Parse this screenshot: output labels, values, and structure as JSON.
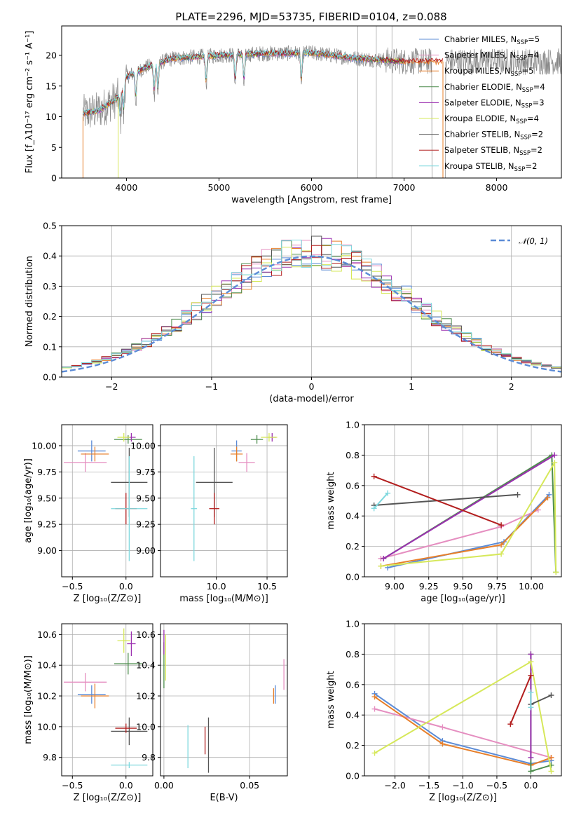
{
  "figure_title": "PLATE=2296, MJD=53735, FIBERID=0104, z=0.088",
  "colors": {
    "chabrier_miles": "#5b8bd6",
    "salpeter_miles": "#e58ec0",
    "kroupa_miles": "#e77f2a",
    "chabrier_elodie": "#4e8d4e",
    "salpeter_elodie": "#9b30b0",
    "kroupa_elodie": "#d6e85a",
    "chabrier_stelib": "#555555",
    "salpeter_stelib": "#b21d1d",
    "kroupa_stelib": "#7fd8de",
    "gaussian": "#5b8bd6",
    "grid": "#b0b0b0"
  },
  "chart_data": [
    {
      "id": "spectrum",
      "type": "line",
      "xlabel": "wavelength [Angstrom, rest frame]",
      "ylabel": "Flux [f_λ10⁻¹⁷ erg cm⁻² s⁻¹ A⁻¹]",
      "xlim": [
        3300,
        8700
      ],
      "ylim": [
        0,
        24.8
      ],
      "xticks": [
        4000,
        5000,
        6000,
        7000,
        8000
      ],
      "yticks": [
        0,
        5,
        10,
        15,
        20
      ],
      "grid": false,
      "legend_position": "right",
      "legend": [
        {
          "label": "Chabrier MILES, N",
          "sub": "SSP",
          "tail": "=5",
          "color_key": "chabrier_miles"
        },
        {
          "label": "Salpeter MILES, N",
          "sub": "SSP",
          "tail": "=4",
          "color_key": "salpeter_miles"
        },
        {
          "label": "Kroupa MILES, N",
          "sub": "SSP",
          "tail": "=5",
          "color_key": "kroupa_miles"
        },
        {
          "label": "Chabrier ELODIE, N",
          "sub": "SSP",
          "tail": "=4",
          "color_key": "chabrier_elodie"
        },
        {
          "label": "Salpeter ELODIE, N",
          "sub": "SSP",
          "tail": "=3",
          "color_key": "salpeter_elodie"
        },
        {
          "label": "Kroupa ELODIE, N",
          "sub": "SSP",
          "tail": "=4",
          "color_key": "kroupa_elodie"
        },
        {
          "label": "Chabrier STELIB, N",
          "sub": "SSP",
          "tail": "=2",
          "color_key": "chabrier_stelib"
        },
        {
          "label": "Salpeter STELIB, N",
          "sub": "SSP",
          "tail": "=2",
          "color_key": "salpeter_stelib"
        },
        {
          "label": "Kroupa STELIB, N",
          "sub": "SSP",
          "tail": "=2",
          "color_key": "kroupa_stelib"
        }
      ],
      "continuum": [
        [
          3530,
          10.5
        ],
        [
          3700,
          11
        ],
        [
          3900,
          13
        ],
        [
          4000,
          16.5
        ],
        [
          4200,
          18
        ],
        [
          4500,
          19.5
        ],
        [
          5000,
          20
        ],
        [
          5500,
          20.3
        ],
        [
          6000,
          20.4
        ],
        [
          6500,
          19.5
        ],
        [
          7000,
          19
        ],
        [
          7200,
          19
        ]
      ],
      "model_end": {
        "kroupa_stelib": 6750,
        "salpeter_stelib": 7420,
        "kroupa_elodie": 7000,
        "chabrier_elodie": 7000,
        "salpeter_elodie": 7000,
        "chabrier_miles": 7000,
        "salpeter_miles": 7000,
        "kroupa_miles": 7420,
        "chabrier_stelib": 7000
      },
      "data_end": 8700,
      "absorption_lines": [
        3934,
        3969,
        4102,
        4300,
        4340,
        4861,
        5175,
        5270,
        5890
      ],
      "sky_spikes": [
        6500,
        6700,
        6870
      ]
    },
    {
      "id": "residuals",
      "type": "step",
      "xlabel": "(data-model)/error",
      "ylabel": "Normed distribution",
      "xlim": [
        -2.5,
        2.5
      ],
      "ylim": [
        0,
        0.5
      ],
      "xticks": [
        -2,
        -1,
        0,
        1,
        2
      ],
      "yticks": [
        0.0,
        0.1,
        0.2,
        0.3,
        0.4,
        0.5
      ],
      "grid": true,
      "legend": [
        {
          "label": "𝒩(0, 1)",
          "color_key": "gaussian"
        }
      ],
      "legend_position": "top-right",
      "bin_width": 0.1
    },
    {
      "id": "age_vs_Z",
      "type": "errorbar",
      "xlabel": "Z [log₁₀(Z/Z⊙)]",
      "ylabel": "age  [log₁₀(age/yr)]",
      "xlim": [
        -0.6,
        0.25
      ],
      "ylim": [
        8.75,
        10.2
      ],
      "xticks": [
        -0.5,
        0.0
      ],
      "yticks": [
        9.0,
        9.25,
        9.5,
        9.75,
        10.0
      ],
      "grid": true,
      "points": [
        {
          "key": "chabrier_miles",
          "x": -0.32,
          "xerr": 0.13,
          "y": 9.95,
          "yerr": 0.1
        },
        {
          "key": "salpeter_miles",
          "x": -0.38,
          "xerr": 0.2,
          "y": 9.84,
          "yerr": 0.09
        },
        {
          "key": "kroupa_miles",
          "x": -0.29,
          "xerr": 0.13,
          "y": 9.92,
          "yerr": 0.07
        },
        {
          "key": "chabrier_elodie",
          "x": 0.02,
          "xerr": 0.13,
          "y": 10.06,
          "yerr": 0.04
        },
        {
          "key": "salpeter_elodie",
          "x": 0.05,
          "xerr": 0.04,
          "y": 10.08,
          "yerr": 0.04
        },
        {
          "key": "kroupa_elodie",
          "x": -0.02,
          "xerr": 0.06,
          "y": 10.08,
          "yerr": 0.04
        },
        {
          "key": "chabrier_stelib",
          "x": 0.03,
          "xerr": 0.17,
          "y": 9.65,
          "yerr": 0.33
        },
        {
          "key": "salpeter_stelib",
          "x": 0.0,
          "xerr": 0.1,
          "y": 9.4,
          "yerr": 0.15
        },
        {
          "key": "kroupa_stelib",
          "x": 0.03,
          "xerr": 0.17,
          "y": 9.4,
          "yerr": 0.5
        }
      ]
    },
    {
      "id": "age_vs_mass",
      "type": "errorbar",
      "xlabel": "mass [log₁₀(M/M⊙)]",
      "ylabel": "",
      "xlim": [
        9.45,
        10.7
      ],
      "ylim": [
        8.75,
        10.2
      ],
      "xticks": [
        10.0,
        10.5
      ],
      "yticks": [
        9.0,
        9.25,
        9.5,
        9.75,
        10.0
      ],
      "grid": true,
      "points": [
        {
          "key": "chabrier_miles",
          "x": 10.2,
          "xerr": 0.05,
          "y": 9.95,
          "yerr": 0.1
        },
        {
          "key": "salpeter_miles",
          "x": 10.3,
          "xerr": 0.08,
          "y": 9.84,
          "yerr": 0.09
        },
        {
          "key": "kroupa_miles",
          "x": 10.2,
          "xerr": 0.06,
          "y": 9.92,
          "yerr": 0.07
        },
        {
          "key": "chabrier_elodie",
          "x": 10.4,
          "xerr": 0.06,
          "y": 10.06,
          "yerr": 0.04
        },
        {
          "key": "salpeter_elodie",
          "x": 10.55,
          "xerr": 0.04,
          "y": 10.08,
          "yerr": 0.04
        },
        {
          "key": "kroupa_elodie",
          "x": 10.52,
          "xerr": 0.08,
          "y": 10.08,
          "yerr": 0.04
        },
        {
          "key": "chabrier_stelib",
          "x": 9.98,
          "xerr": 0.18,
          "y": 9.65,
          "yerr": 0.33
        },
        {
          "key": "salpeter_stelib",
          "x": 9.98,
          "xerr": 0.05,
          "y": 9.4,
          "yerr": 0.15
        },
        {
          "key": "kroupa_stelib",
          "x": 9.78,
          "xerr": 0.03,
          "y": 9.4,
          "yerr": 0.5
        }
      ]
    },
    {
      "id": "weight_vs_age",
      "type": "line",
      "xlabel": "age  [log₁₀(age/yr)]",
      "ylabel": "mass weight",
      "xlim": [
        8.78,
        10.22
      ],
      "ylim": [
        0.0,
        1.0
      ],
      "xticks": [
        9.0,
        9.25,
        9.5,
        9.75,
        10.0
      ],
      "yticks": [
        0.0,
        0.2,
        0.4,
        0.6,
        0.8,
        1.0
      ],
      "grid": true,
      "series": [
        {
          "key": "chabrier_miles",
          "x": [
            8.95,
            9.8,
            10.13
          ],
          "y": [
            0.06,
            0.23,
            0.54
          ]
        },
        {
          "key": "salpeter_miles",
          "x": [
            8.9,
            9.78,
            10.05
          ],
          "y": [
            0.12,
            0.33,
            0.44
          ]
        },
        {
          "key": "kroupa_miles",
          "x": [
            8.9,
            9.78,
            10.12
          ],
          "y": [
            0.07,
            0.21,
            0.52
          ]
        },
        {
          "key": "chabrier_elodie",
          "x": [
            8.92,
            10.15,
            10.18
          ],
          "y": [
            0.12,
            0.8,
            0.03
          ]
        },
        {
          "key": "salpeter_elodie",
          "x": [
            8.92,
            10.17
          ],
          "y": [
            0.12,
            0.8
          ]
        },
        {
          "key": "kroupa_elodie",
          "x": [
            8.9,
            9.78,
            10.17,
            10.18
          ],
          "y": [
            0.07,
            0.15,
            0.75,
            0.03
          ]
        },
        {
          "key": "chabrier_stelib",
          "x": [
            8.85,
            9.9
          ],
          "y": [
            0.47,
            0.54
          ]
        },
        {
          "key": "salpeter_stelib",
          "x": [
            8.85,
            9.78
          ],
          "y": [
            0.66,
            0.34
          ]
        },
        {
          "key": "kroupa_stelib",
          "x": [
            8.85,
            8.95
          ],
          "y": [
            0.45,
            0.55
          ]
        }
      ]
    },
    {
      "id": "mass_vs_Z",
      "type": "errorbar",
      "xlabel": "Z [log₁₀(Z/Z⊙)]",
      "ylabel": "mass [log₁₀(M/M⊙)]",
      "xlim": [
        -0.6,
        0.25
      ],
      "ylim": [
        9.68,
        10.67
      ],
      "xticks": [
        -0.5,
        0.0
      ],
      "yticks": [
        9.8,
        10.0,
        10.2,
        10.4,
        10.6
      ],
      "grid": true,
      "points": [
        {
          "key": "chabrier_miles",
          "x": -0.32,
          "xerr": 0.13,
          "y": 10.21,
          "yerr": 0.06
        },
        {
          "key": "salpeter_miles",
          "x": -0.38,
          "xerr": 0.2,
          "y": 10.29,
          "yerr": 0.06
        },
        {
          "key": "kroupa_miles",
          "x": -0.29,
          "xerr": 0.13,
          "y": 10.2,
          "yerr": 0.08
        },
        {
          "key": "chabrier_elodie",
          "x": 0.02,
          "xerr": 0.13,
          "y": 10.41,
          "yerr": 0.07
        },
        {
          "key": "salpeter_elodie",
          "x": 0.05,
          "xerr": 0.04,
          "y": 10.54,
          "yerr": 0.08
        },
        {
          "key": "kroupa_elodie",
          "x": -0.02,
          "xerr": 0.06,
          "y": 10.56,
          "yerr": 0.08
        },
        {
          "key": "chabrier_stelib",
          "x": 0.03,
          "xerr": 0.17,
          "y": 9.97,
          "yerr": 0.09
        },
        {
          "key": "salpeter_stelib",
          "x": 0.0,
          "xerr": 0.1,
          "y": 9.99,
          "yerr": 0.03
        },
        {
          "key": "kroupa_stelib",
          "x": 0.03,
          "xerr": 0.17,
          "y": 9.75,
          "yerr": 0.02
        }
      ]
    },
    {
      "id": "mass_vs_ebv",
      "type": "errorbar",
      "xlabel": "E(B-V)",
      "ylabel": "",
      "xlim": [
        -0.002,
        0.072
      ],
      "ylim": [
        9.68,
        10.67
      ],
      "xticks": [
        0.0,
        0.05
      ],
      "yticks": [
        9.8,
        10.0,
        10.2,
        10.4,
        10.6
      ],
      "grid": true,
      "points": [
        {
          "key": "chabrier_miles",
          "x": 0.065,
          "xerr": 0,
          "y": 10.21,
          "yerr": 0.06
        },
        {
          "key": "salpeter_miles",
          "x": 0.07,
          "xerr": 0,
          "y": 10.34,
          "yerr": 0.1
        },
        {
          "key": "kroupa_miles",
          "x": 0.064,
          "xerr": 0,
          "y": 10.2,
          "yerr": 0.05
        },
        {
          "key": "chabrier_elodie",
          "x": 0.0,
          "xerr": 0,
          "y": 10.4,
          "yerr": 0.15
        },
        {
          "key": "salpeter_elodie",
          "x": 0.0,
          "xerr": 0,
          "y": 10.55,
          "yerr": 0.08
        },
        {
          "key": "kroupa_elodie",
          "x": 0.001,
          "xerr": 0,
          "y": 10.45,
          "yerr": 0.15
        },
        {
          "key": "chabrier_stelib",
          "x": 0.026,
          "xerr": 0,
          "y": 9.88,
          "yerr": 0.18
        },
        {
          "key": "salpeter_stelib",
          "x": 0.024,
          "xerr": 0,
          "y": 9.91,
          "yerr": 0.09
        },
        {
          "key": "kroupa_stelib",
          "x": 0.014,
          "xerr": 0,
          "y": 9.87,
          "yerr": 0.14
        }
      ]
    },
    {
      "id": "weight_vs_Z",
      "type": "line",
      "xlabel": "Z [log₁₀(Z/Z⊙)]",
      "ylabel": "mass weight",
      "xlim": [
        -2.45,
        0.45
      ],
      "ylim": [
        0.0,
        1.0
      ],
      "xticks": [
        -2.0,
        -1.5,
        -1.0,
        -0.5,
        0.0
      ],
      "yticks": [
        0.0,
        0.2,
        0.4,
        0.6,
        0.8,
        1.0
      ],
      "grid": true,
      "series": [
        {
          "key": "chabrier_miles",
          "x": [
            -2.3,
            -1.3,
            0.0,
            0.3
          ],
          "y": [
            0.54,
            0.23,
            0.08,
            0.1
          ]
        },
        {
          "key": "salpeter_miles",
          "x": [
            -2.3,
            -1.3,
            0.3
          ],
          "y": [
            0.44,
            0.32,
            0.12
          ]
        },
        {
          "key": "kroupa_miles",
          "x": [
            -2.3,
            -1.3,
            0.0,
            0.3
          ],
          "y": [
            0.52,
            0.21,
            0.07,
            0.12
          ]
        },
        {
          "key": "chabrier_elodie",
          "x": [
            0.0,
            0.0,
            0.3
          ],
          "y": [
            0.8,
            0.03,
            0.07
          ]
        },
        {
          "key": "salpeter_elodie",
          "x": [
            0.0,
            0.0
          ],
          "y": [
            0.8,
            0.12
          ]
        },
        {
          "key": "kroupa_elodie",
          "x": [
            -2.3,
            0.0,
            0.3
          ],
          "y": [
            0.15,
            0.75,
            0.03
          ]
        },
        {
          "key": "chabrier_stelib",
          "x": [
            0.0,
            0.3
          ],
          "y": [
            0.47,
            0.53
          ]
        },
        {
          "key": "salpeter_stelib",
          "x": [
            -0.3,
            0.0
          ],
          "y": [
            0.34,
            0.66
          ]
        },
        {
          "key": "kroupa_stelib",
          "x": [
            0.0,
            0.0
          ],
          "y": [
            0.45,
            0.55
          ]
        }
      ]
    }
  ]
}
